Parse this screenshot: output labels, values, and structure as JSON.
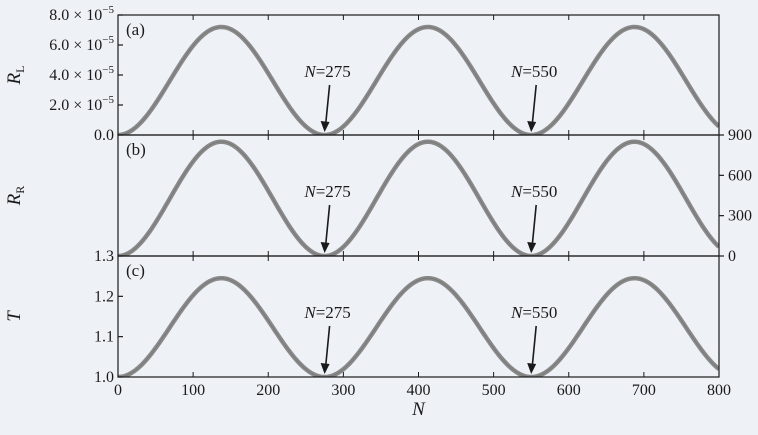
{
  "chart_data": {
    "type": "line",
    "xlabel": "N",
    "x_range": [
      0,
      800
    ],
    "x_ticks": [
      "0",
      "100",
      "200",
      "300",
      "400",
      "500",
      "600",
      "700",
      "800"
    ],
    "x_tick_values": [
      0,
      100,
      200,
      300,
      400,
      500,
      600,
      700,
      800
    ],
    "line_color": "#8a8a8a",
    "panels": [
      {
        "panel_label": "(a)",
        "ylabel_main": "R",
        "ylabel_sub": "L",
        "ylim": [
          0,
          8e-05
        ],
        "y_ticks": [
          {
            "value": 0.0,
            "mant": "0.0",
            "exp": ""
          },
          {
            "value": 2e-05,
            "mant": "2.0 × 10",
            "exp": "−5"
          },
          {
            "value": 4e-05,
            "mant": "4.0 × 10",
            "exp": "−5"
          },
          {
            "value": 6e-05,
            "mant": "6.0 × 10",
            "exp": "−5"
          },
          {
            "value": 8e-05,
            "mant": "8.0 × 10",
            "exp": "−5"
          }
        ],
        "right_ticks": [],
        "series_formula": "y = A sin^2(pi N / 275)",
        "amplitude": 7.2e-05,
        "baseline": 0,
        "period": 275,
        "annotations": [
          {
            "text_italic": "N",
            "text_rest": "=275",
            "x": 275
          },
          {
            "text_italic": "N",
            "text_rest": "=550",
            "x": 550
          }
        ]
      },
      {
        "panel_label": "(b)",
        "ylabel_main": "R",
        "ylabel_sub": "R",
        "ylim": [
          0,
          900
        ],
        "y_ticks": [],
        "right_ticks": [
          {
            "value": 0,
            "label": "0"
          },
          {
            "value": 300,
            "label": "300"
          },
          {
            "value": 600,
            "label": "600"
          },
          {
            "value": 900,
            "label": "900"
          }
        ],
        "amplitude": 850,
        "baseline": 0,
        "period": 275,
        "annotations": [
          {
            "text_italic": "N",
            "text_rest": "=275",
            "x": 275
          },
          {
            "text_italic": "N",
            "text_rest": "=550",
            "x": 550
          }
        ]
      },
      {
        "panel_label": "(c)",
        "ylabel_main": "T",
        "ylabel_sub": "",
        "ylim": [
          1.0,
          1.3
        ],
        "y_ticks": [
          {
            "value": 1.0,
            "mant": "1.0",
            "exp": ""
          },
          {
            "value": 1.1,
            "mant": "1.1",
            "exp": ""
          },
          {
            "value": 1.2,
            "mant": "1.2",
            "exp": ""
          },
          {
            "value": 1.3,
            "mant": "1.3",
            "exp": ""
          }
        ],
        "right_ticks": [],
        "amplitude": 0.245,
        "baseline": 1.0,
        "period": 275,
        "annotations": [
          {
            "text_italic": "N",
            "text_rest": "=275",
            "x": 275
          },
          {
            "text_italic": "N",
            "text_rest": "=550",
            "x": 550
          }
        ]
      }
    ]
  }
}
